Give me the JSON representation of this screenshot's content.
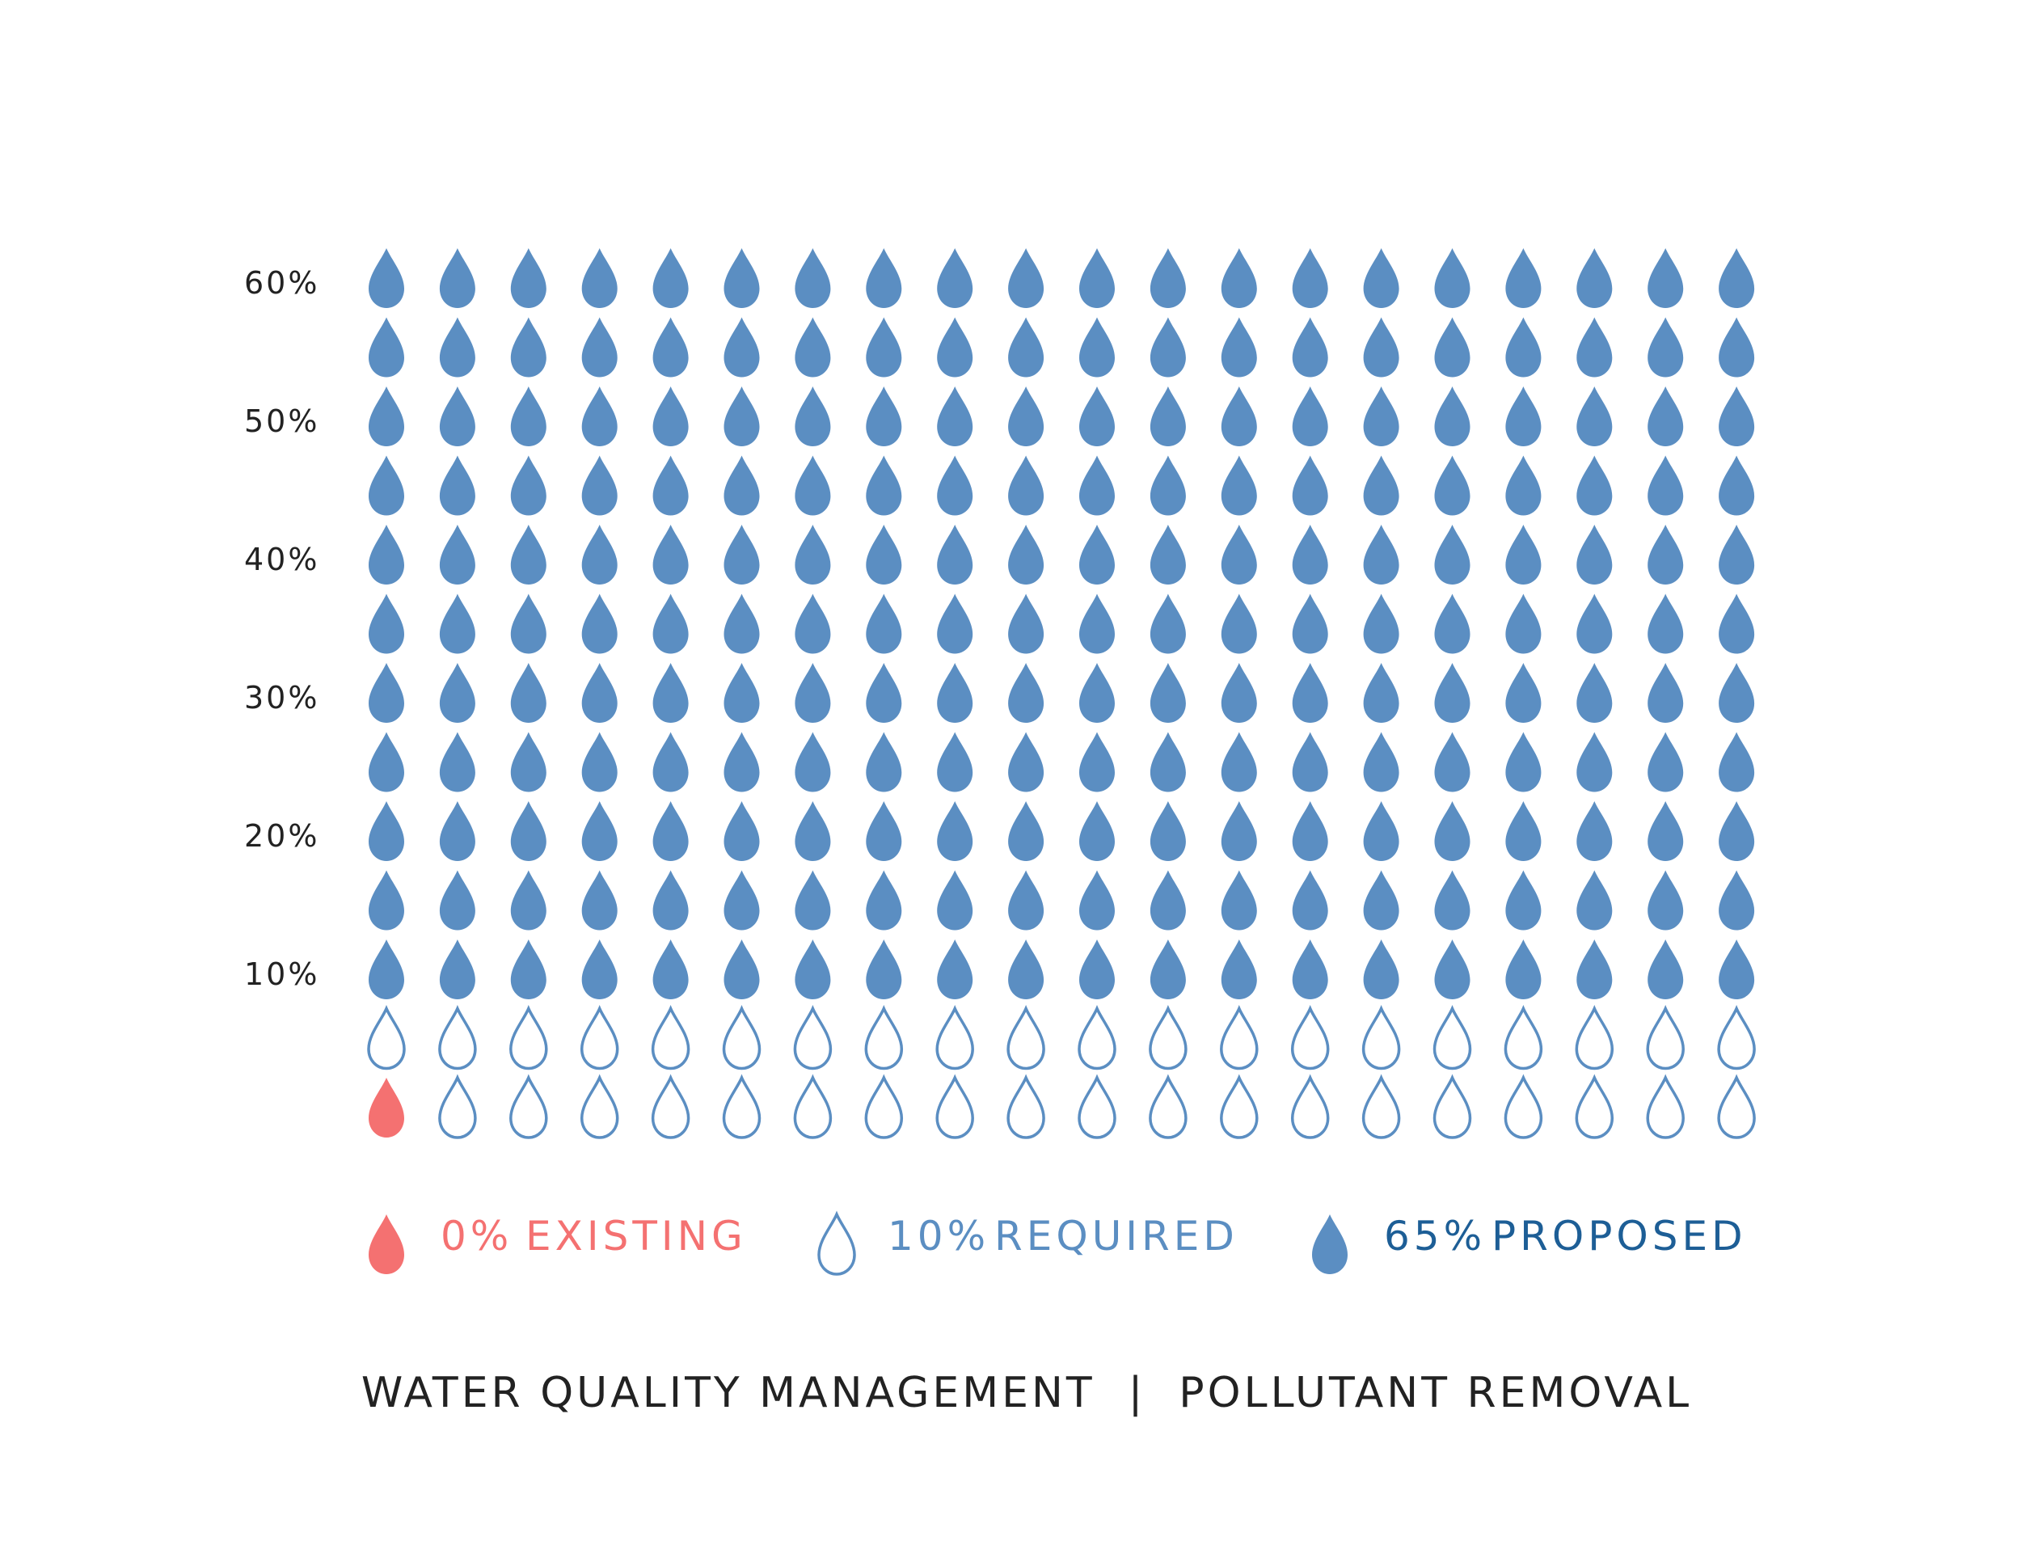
{
  "chart_data": {
    "type": "waffle",
    "title": "WATER QUALITY MANAGEMENT  |  POLLUTANT REMOVAL",
    "grid": {
      "columns": 20,
      "rows": 13,
      "percent_per_row": 5
    },
    "y_ticks": [
      "10%",
      "20%",
      "30%",
      "40%",
      "50%",
      "60%"
    ],
    "y_tick_values": [
      10,
      20,
      30,
      40,
      50,
      60
    ],
    "series": [
      {
        "name": "EXISTING",
        "value_label": "0%",
        "value": 0,
        "style": "filled",
        "color": "#f47171"
      },
      {
        "name": "REQUIRED",
        "value_label": "10%",
        "value": 10,
        "style": "outline",
        "color": "#5b8ec2"
      },
      {
        "name": "PROPOSED",
        "value_label": "65%",
        "value": 65,
        "style": "filled",
        "color": "#5b8ec2"
      }
    ],
    "legend": {
      "position": "bottom"
    },
    "legend_text_colors": {
      "EXISTING": "#f47171",
      "REQUIRED": "#5b8ec2",
      "PROPOSED": "#1d5e96"
    }
  }
}
